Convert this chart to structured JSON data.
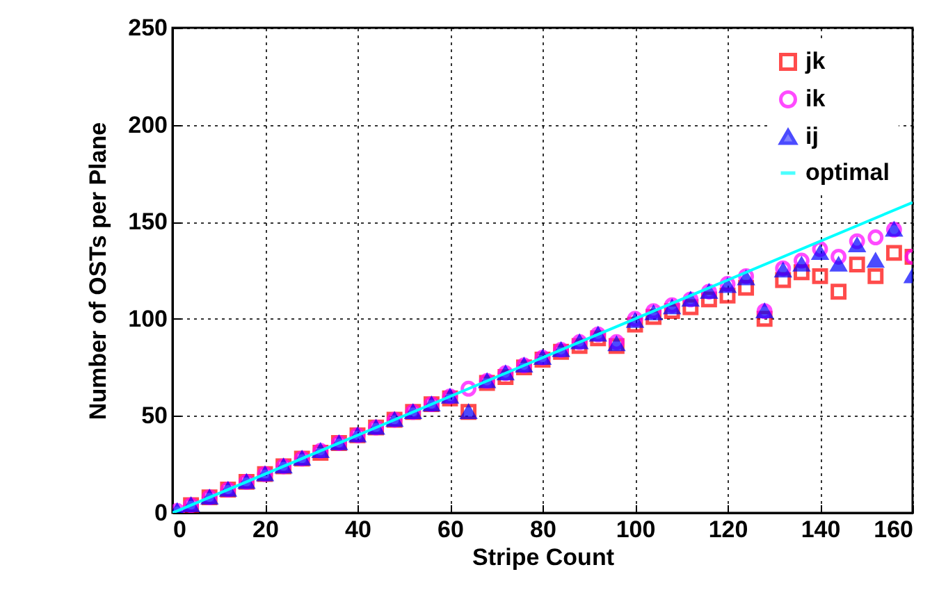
{
  "chart_data": {
    "type": "scatter",
    "xlabel": "Stripe Count",
    "ylabel": "Number of OSTs per Plane",
    "xlim": [
      0,
      160
    ],
    "ylim": [
      0,
      250
    ],
    "xticks": [
      0,
      20,
      40,
      60,
      80,
      100,
      120,
      140,
      160
    ],
    "yticks": [
      0,
      50,
      100,
      150,
      200,
      250
    ],
    "grid": true,
    "legend": "top right",
    "series": [
      {
        "name": "jk",
        "color": "#ff0000",
        "marker": "square",
        "x": [
          4,
          8,
          12,
          16,
          20,
          24,
          28,
          32,
          36,
          40,
          44,
          48,
          52,
          56,
          60,
          64,
          68,
          72,
          76,
          80,
          84,
          88,
          92,
          96,
          100,
          104,
          108,
          112,
          116,
          120,
          124,
          128,
          132,
          136,
          140,
          144,
          148,
          152,
          156,
          160
        ],
        "values": [
          4,
          8,
          12,
          16,
          20,
          24,
          28,
          31,
          36,
          40,
          44,
          48,
          52,
          56,
          59,
          52,
          67,
          70,
          75,
          79,
          83,
          86,
          90,
          86,
          97,
          101,
          104,
          106,
          110,
          112,
          116,
          100,
          120,
          124,
          122,
          114,
          128,
          122,
          134,
          132
        ]
      },
      {
        "name": "ik",
        "color": "#ff00ff",
        "marker": "circle",
        "x": [
          1,
          4,
          8,
          12,
          16,
          20,
          24,
          28,
          32,
          36,
          40,
          44,
          48,
          52,
          56,
          60,
          64,
          68,
          72,
          76,
          80,
          84,
          88,
          92,
          96,
          100,
          104,
          108,
          112,
          116,
          120,
          124,
          128,
          132,
          136,
          140,
          144,
          148,
          152,
          156,
          160
        ],
        "values": [
          1,
          4,
          8,
          12,
          16,
          20,
          24,
          28,
          32,
          36,
          40,
          44,
          48,
          52,
          56,
          60,
          64,
          68,
          72,
          76,
          80,
          84,
          88,
          92,
          88,
          100,
          104,
          107,
          110,
          114,
          118,
          122,
          104,
          126,
          130,
          136,
          132,
          140,
          142,
          146,
          132
        ]
      },
      {
        "name": "ij",
        "color": "#0000ff",
        "marker": "triangle",
        "x": [
          1,
          4,
          8,
          12,
          16,
          20,
          24,
          28,
          32,
          36,
          40,
          44,
          48,
          52,
          56,
          60,
          64,
          68,
          72,
          76,
          80,
          84,
          88,
          92,
          96,
          100,
          104,
          108,
          112,
          116,
          120,
          124,
          128,
          132,
          136,
          140,
          144,
          148,
          152,
          156,
          160
        ],
        "values": [
          1,
          4,
          8,
          12,
          16,
          20,
          24,
          28,
          32,
          36,
          40,
          44,
          48,
          52,
          56,
          60,
          52,
          68,
          72,
          76,
          80,
          84,
          88,
          92,
          87,
          99,
          103,
          106,
          110,
          114,
          117,
          121,
          104,
          125,
          128,
          134,
          128,
          138,
          130,
          146,
          122
        ]
      },
      {
        "name": "optimal",
        "color": "#00ffff",
        "type": "line",
        "x": [
          0,
          160
        ],
        "values": [
          0,
          160
        ]
      }
    ]
  }
}
